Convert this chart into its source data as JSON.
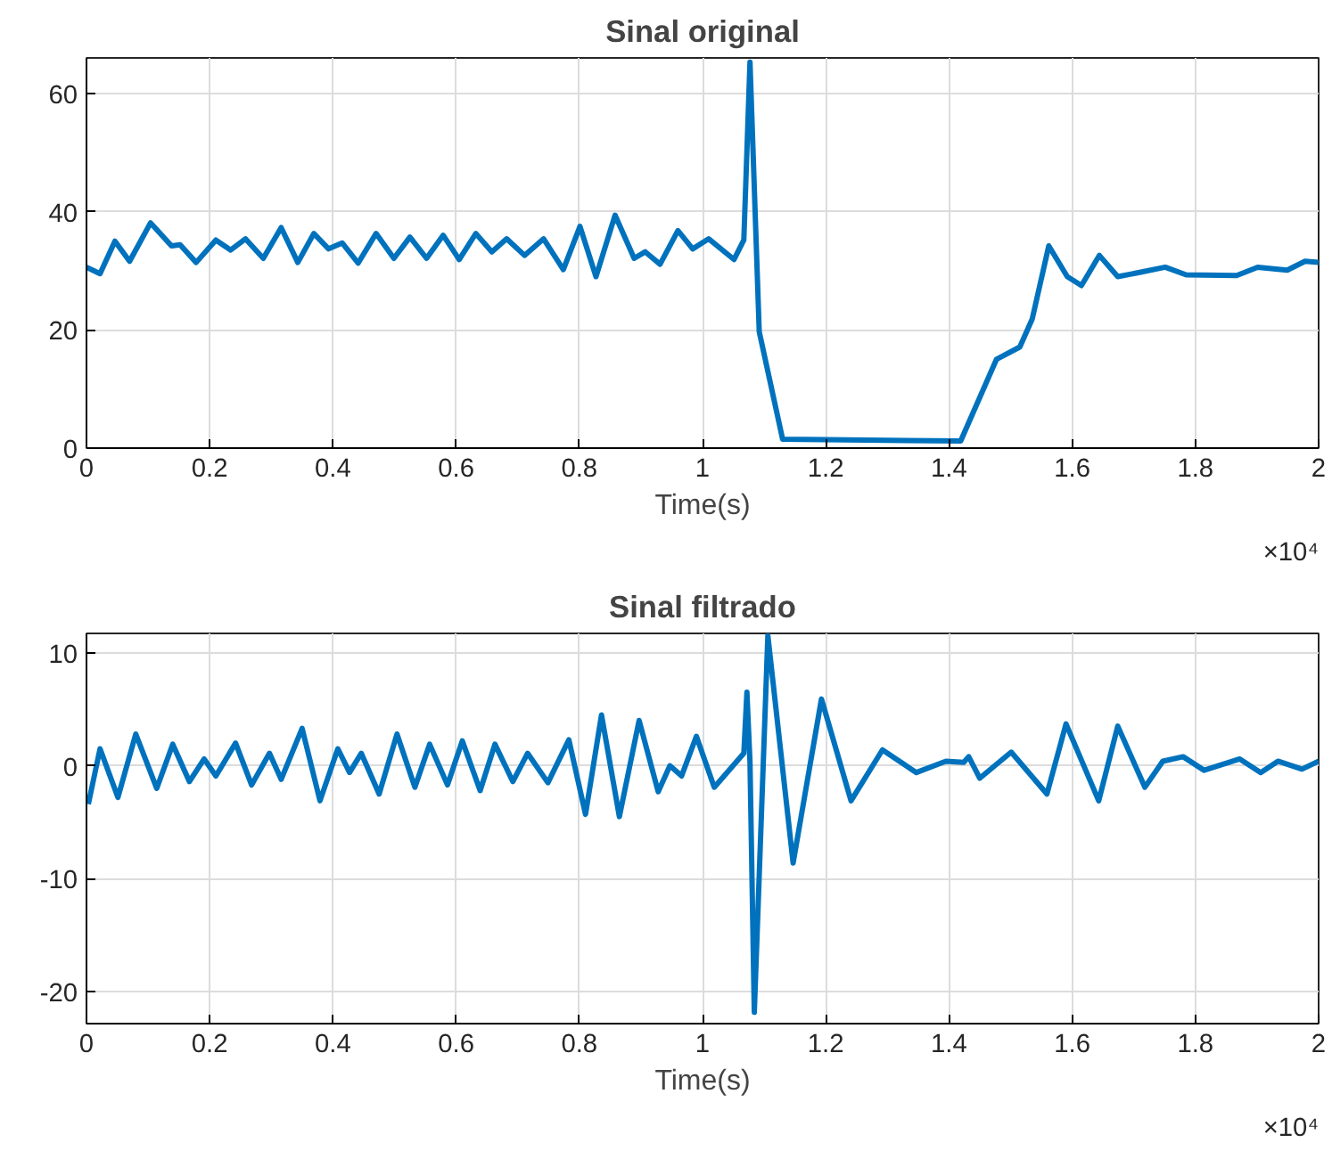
{
  "chart_data": [
    {
      "type": "line",
      "title": "Sinal original",
      "xlabel": "Time(s)",
      "annotations": [
        "×10⁴"
      ],
      "xlim": [
        0,
        2
      ],
      "ylim": [
        0,
        66
      ],
      "xticks": [
        0,
        0.2,
        0.4,
        0.6,
        0.8,
        1,
        1.2,
        1.4,
        1.6,
        1.8,
        2
      ],
      "yticks": [
        0,
        20,
        40,
        60
      ],
      "grid": true,
      "series": [
        {
          "color": "#0072bd",
          "x": [
            0,
            0.022,
            0.0462,
            0.07,
            0.104,
            0.138,
            0.152,
            0.178,
            0.21,
            0.234,
            0.258,
            0.287,
            0.316,
            0.343,
            0.369,
            0.393,
            0.415,
            0.441,
            0.47,
            0.499,
            0.525,
            0.552,
            0.579,
            0.605,
            0.632,
            0.658,
            0.682,
            0.711,
            0.742,
            0.774,
            0.801,
            0.827,
            0.858,
            0.889,
            0.907,
            0.931,
            0.96,
            0.984,
            1.01,
            1.051,
            1.067,
            1.077,
            1.092,
            1.13,
            1.419,
            1.477,
            1.515,
            1.535,
            1.562,
            1.592,
            1.615,
            1.644,
            1.674,
            1.713,
            1.751,
            1.785,
            1.867,
            1.901,
            1.949,
            1.978,
            2
          ],
          "values": [
            30.6,
            29.5,
            35,
            31.6,
            38.1,
            34.2,
            34.4,
            31.4,
            35.2,
            33.5,
            35.4,
            32.1,
            37.3,
            31.4,
            36.3,
            33.7,
            34.7,
            31.3,
            36.3,
            32.1,
            35.7,
            32.1,
            36.0,
            31.9,
            36.3,
            33.2,
            35.4,
            32.6,
            35.4,
            30.2,
            37.5,
            29.0,
            39.4,
            32.1,
            33.2,
            31.1,
            36.8,
            33.7,
            35.4,
            31.9,
            35.2,
            65.3,
            19.7,
            1.5,
            1.2,
            15.0,
            17.1,
            21.8,
            34.2,
            29.0,
            27.5,
            32.6,
            29.0,
            29.8,
            30.6,
            29.3,
            29.2,
            30.6,
            30.1,
            31.6,
            31.4
          ]
        }
      ]
    },
    {
      "type": "line",
      "title": "Sinal filtrado",
      "xlabel": "Time(s)",
      "annotations": [
        "×10⁴"
      ],
      "xlim": [
        0,
        2
      ],
      "ylim": [
        -22.8,
        11.7
      ],
      "xticks": [
        0,
        0.2,
        0.4,
        0.6,
        0.8,
        1,
        1.2,
        1.4,
        1.6,
        1.8,
        2
      ],
      "yticks": [
        -20,
        -10,
        0,
        10
      ],
      "grid": true,
      "series": [
        {
          "color": "#0072bd",
          "x": [
            0.003,
            0.022,
            0.051,
            0.08,
            0.114,
            0.14,
            0.167,
            0.191,
            0.21,
            0.242,
            0.268,
            0.297,
            0.316,
            0.35,
            0.379,
            0.408,
            0.427,
            0.446,
            0.475,
            0.504,
            0.533,
            0.557,
            0.586,
            0.61,
            0.639,
            0.663,
            0.692,
            0.716,
            0.749,
            0.783,
            0.81,
            0.836,
            0.865,
            0.897,
            0.928,
            0.947,
            0.966,
            0.99,
            1.019,
            1.067,
            1.072,
            1.077,
            1.084,
            1.106,
            1.147,
            1.193,
            1.241,
            1.292,
            1.347,
            1.395,
            1.424,
            1.432,
            1.45,
            1.501,
            1.559,
            1.59,
            1.643,
            1.674,
            1.718,
            1.747,
            1.78,
            1.814,
            1.872,
            1.906,
            1.934,
            1.973,
            2
          ],
          "values": [
            -3.4,
            1.5,
            -2.8,
            2.8,
            -2.0,
            1.9,
            -1.4,
            0.6,
            -0.9,
            2.0,
            -1.7,
            1.1,
            -1.2,
            3.3,
            -3.1,
            1.5,
            -0.6,
            1.1,
            -2.5,
            2.8,
            -1.9,
            1.9,
            -1.7,
            2.2,
            -2.2,
            1.9,
            -1.4,
            1.1,
            -1.5,
            2.3,
            -4.3,
            4.5,
            -4.5,
            4.0,
            -2.3,
            0,
            -0.9,
            2.6,
            -1.9,
            1.1,
            6.5,
            0.3,
            -21.8,
            11.5,
            -8.6,
            5.9,
            -3.1,
            1.4,
            -0.6,
            0.4,
            0.3,
            0.8,
            -1.1,
            1.2,
            -2.5,
            3.7,
            -3.1,
            3.5,
            -1.9,
            0.4,
            0.8,
            -0.4,
            0.6,
            -0.6,
            0.4,
            -0.3,
            0.4
          ]
        }
      ]
    }
  ]
}
